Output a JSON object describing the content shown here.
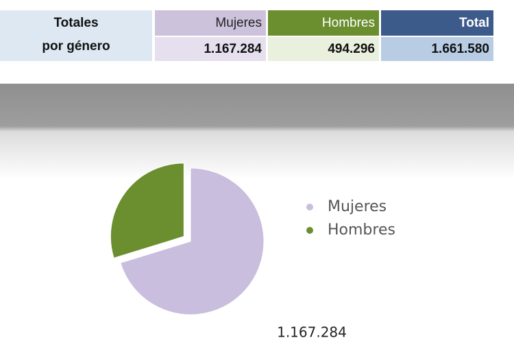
{
  "table": {
    "row_header": [
      "Totales",
      "por género"
    ],
    "columns": [
      "Mujeres",
      "Hombres",
      "Total"
    ],
    "cells": [
      "1.167.284",
      "494.296",
      "1.661.580"
    ]
  },
  "chart_data": {
    "type": "pie",
    "categories": [
      "Mujeres",
      "Hombres"
    ],
    "values": [
      1167284,
      494296
    ],
    "value_labels": [
      "1.167.284",
      null
    ],
    "series_colors": [
      "#c9bedd",
      "#6b8e2f"
    ],
    "exploded": [
      false,
      true
    ],
    "legend": "right"
  }
}
